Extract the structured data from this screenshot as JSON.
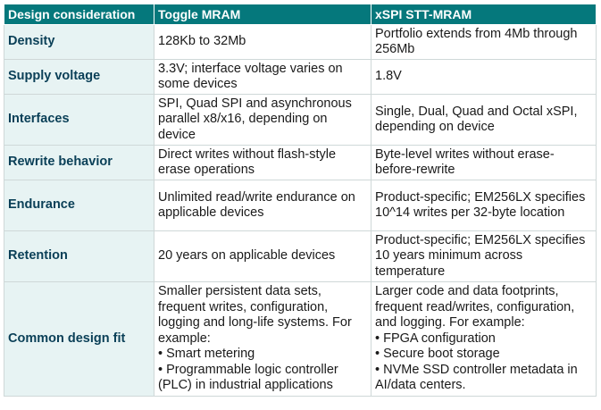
{
  "headers": [
    "Design consideration",
    "Toggle MRAM",
    "xSPI STT-MRAM"
  ],
  "rows": [
    {
      "label": "Density",
      "toggle": [
        "128Kb to 32Mb"
      ],
      "xspi": [
        "Portfolio extends from 4Mb through 256Mb"
      ]
    },
    {
      "label": "Supply voltage",
      "toggle": [
        "3.3V; interface voltage varies on some devices"
      ],
      "xspi": [
        "1.8V"
      ]
    },
    {
      "label": "Interfaces",
      "toggle": [
        "SPI, Quad SPI and asynchronous parallel x8/x16, depending on device"
      ],
      "xspi": [
        "Single, Dual, Quad and Octal xSPI, depending on device"
      ]
    },
    {
      "label": "Rewrite behavior",
      "toggle": [
        "Direct writes without flash-style erase operations"
      ],
      "xspi": [
        "Byte-level writes without erase-before-rewrite"
      ]
    },
    {
      "label": "Endurance",
      "toggle": [
        "Unlimited read/write endurance on applicable devices"
      ],
      "xspi": [
        "Product-specific; EM256LX specifies 10^14 writes per 32-byte location"
      ]
    },
    {
      "label": "Retention",
      "toggle": [
        "20 years on applicable devices"
      ],
      "xspi": [
        "Product-specific; EM256LX specifies 10 years minimum across temperature"
      ]
    },
    {
      "label": "Common design fit",
      "toggle": [
        "Smaller persistent data sets, frequent writes, configuration, logging and long-life systems. For example:",
        "• Smart metering",
        "• Programmable logic controller (PLC) in industrial applications"
      ],
      "xspi": [
        "Larger code and data footprints, frequent read/writes, configuration, and logging. For example:",
        "• FPGA configuration",
        "• Secure boot storage",
        "• NVMe SSD controller metadata in AI/data centers."
      ]
    }
  ],
  "colors": {
    "header_bg": "#05787c",
    "label_bg": "#e7f3f3",
    "label_text": "#0a3f57",
    "border": "#cfd8d8"
  }
}
